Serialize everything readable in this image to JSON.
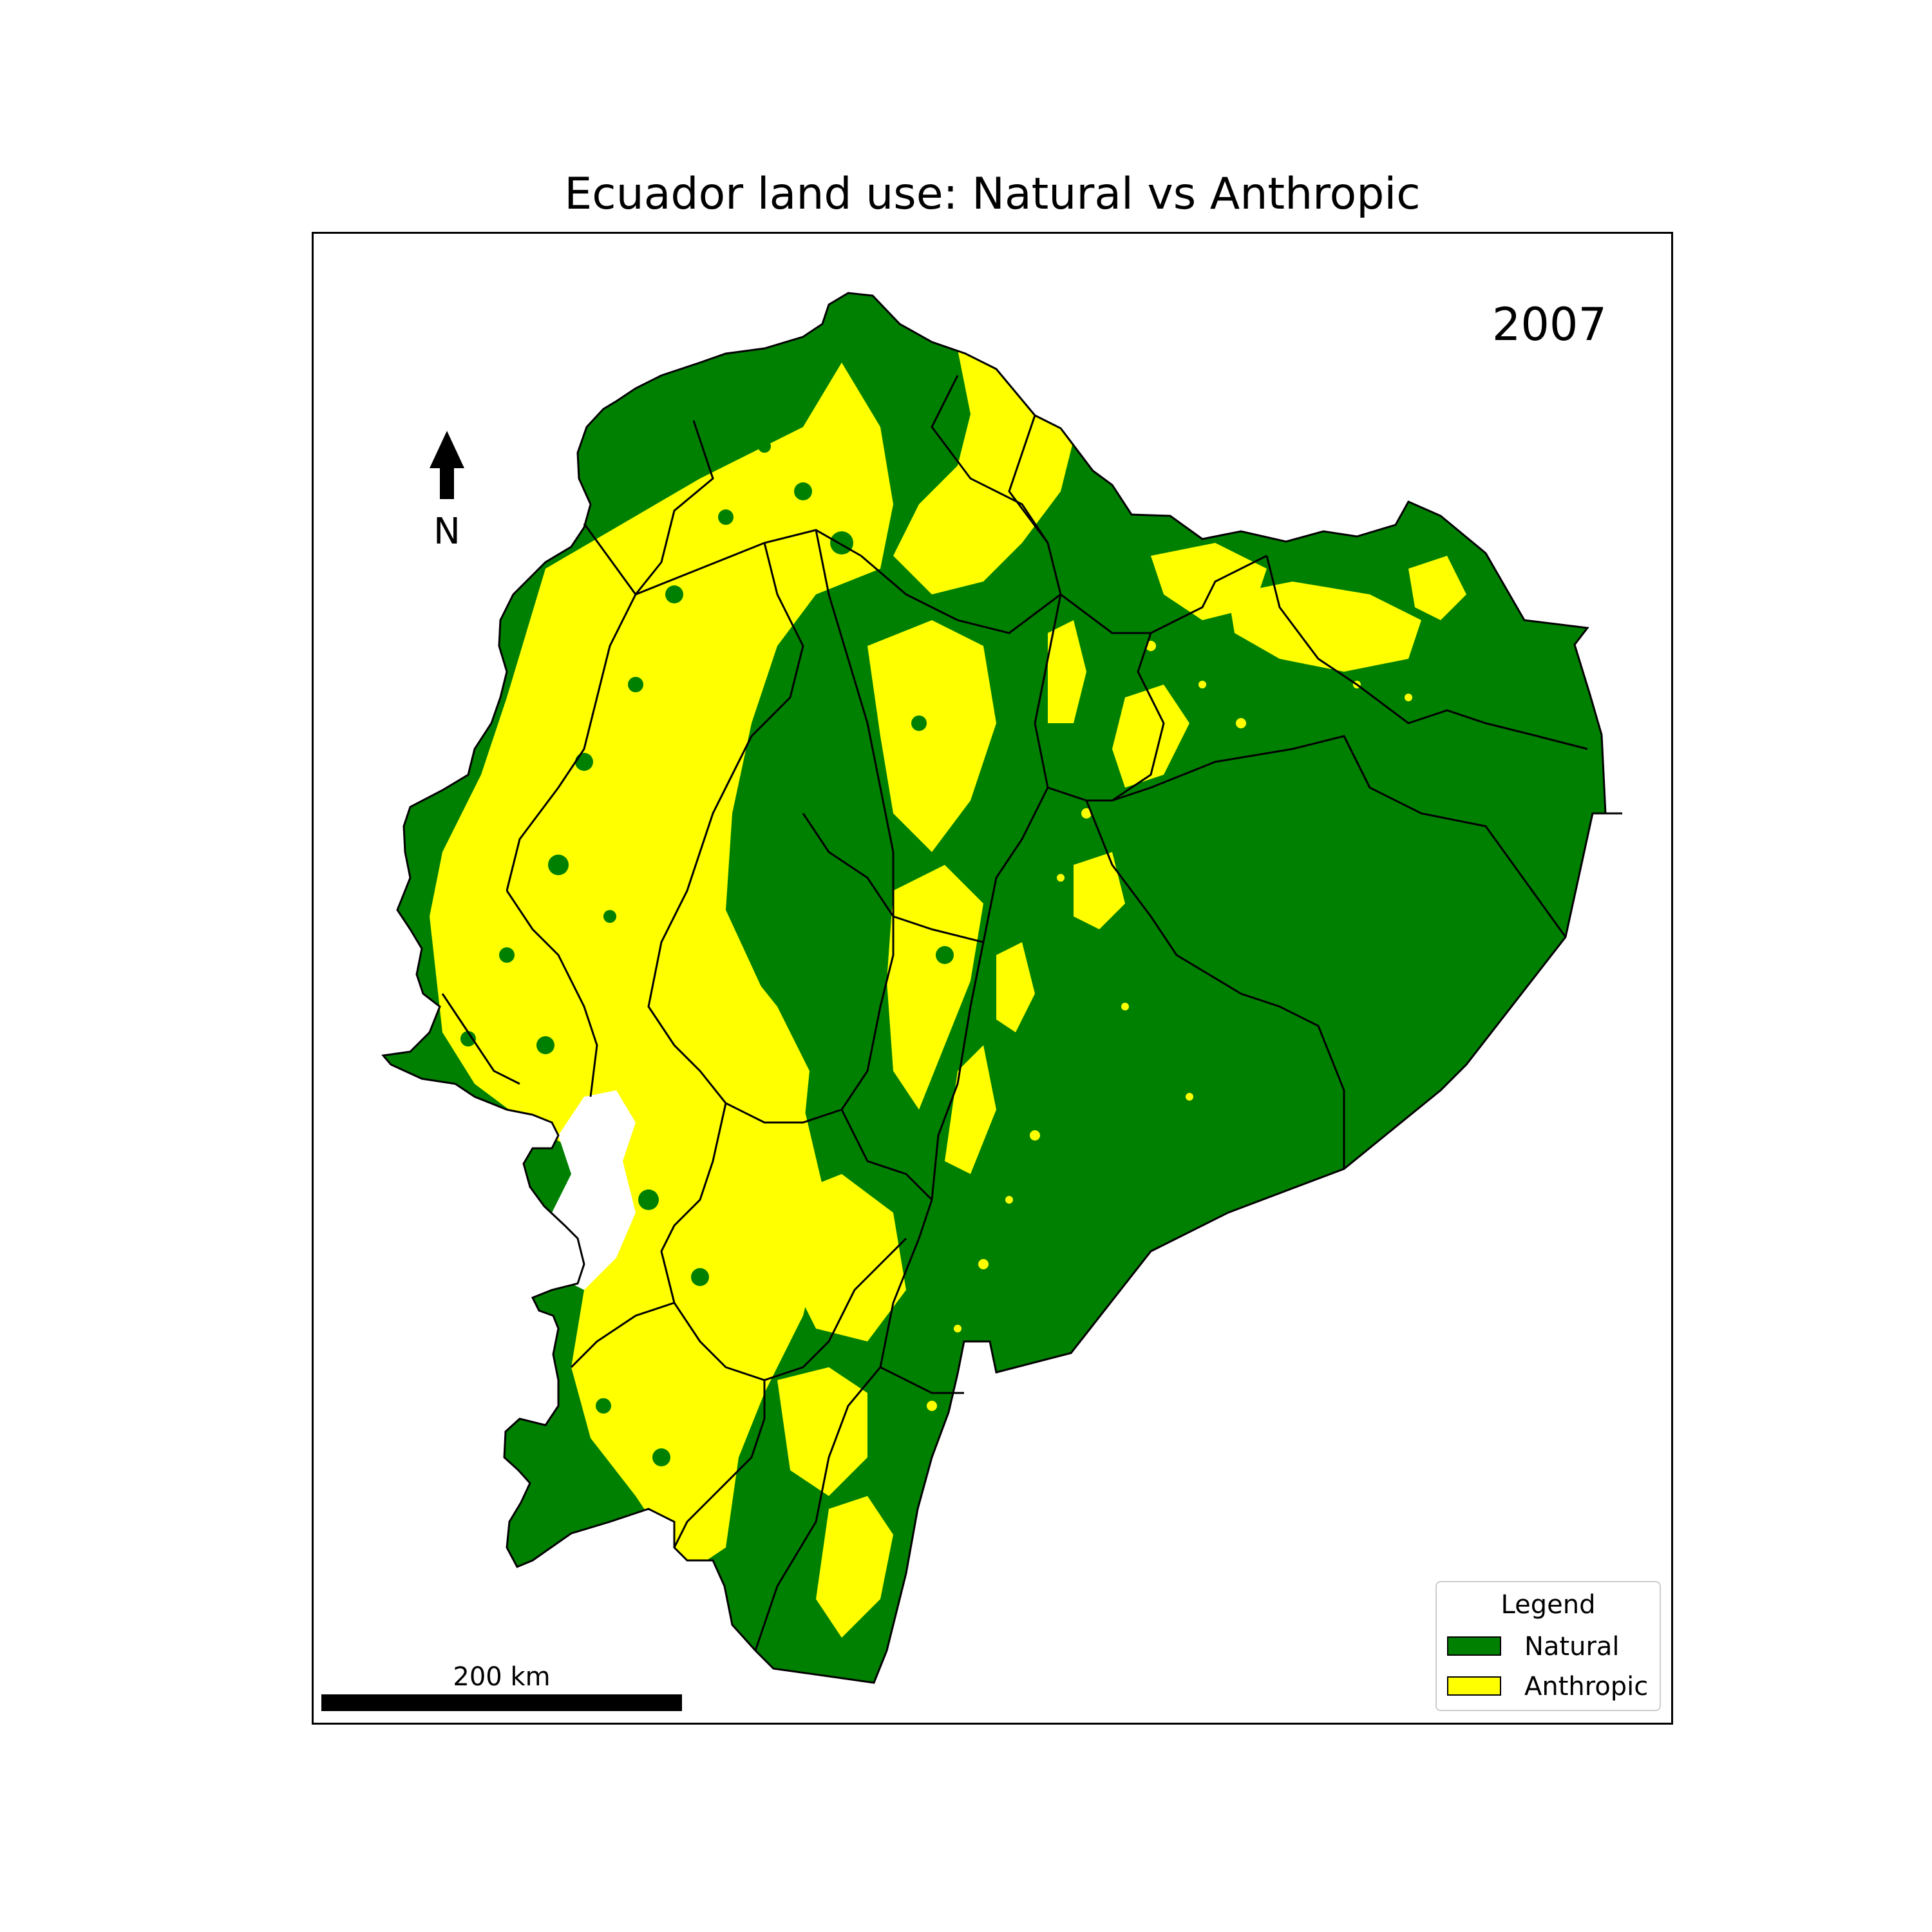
{
  "title": "Ecuador land use: Natural vs Anthropic",
  "year": "2007",
  "north_arrow": {
    "letter": "N",
    "icon": "north-arrow-icon"
  },
  "scale_bar": {
    "label": "200 km"
  },
  "legend": {
    "title": "Legend",
    "items": [
      {
        "label": "Natural",
        "color": "#008000"
      },
      {
        "label": "Anthropic",
        "color": "#ffff00"
      }
    ]
  },
  "colors": {
    "natural": "#008000",
    "anthropic": "#ffff00",
    "boundary": "#000000"
  }
}
